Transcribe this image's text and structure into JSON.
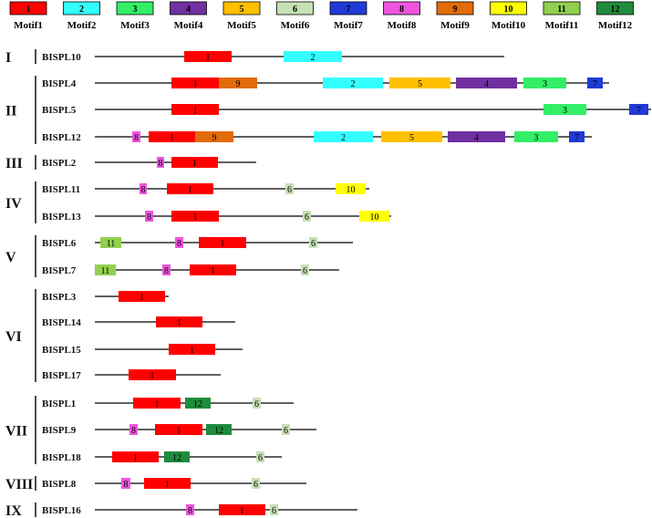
{
  "legend": [
    {
      "num": "1",
      "label": "Motif1",
      "color": "#ff0000"
    },
    {
      "num": "2",
      "label": "Motif2",
      "color": "#33ffff"
    },
    {
      "num": "3",
      "label": "Motif3",
      "color": "#33ee66"
    },
    {
      "num": "4",
      "label": "Motif4",
      "color": "#7030a0"
    },
    {
      "num": "5",
      "label": "Motif5",
      "color": "#ffc000"
    },
    {
      "num": "6",
      "label": "Motif6",
      "color": "#c6e0b4"
    },
    {
      "num": "7",
      "label": "Motif7",
      "color": "#1f3ad6"
    },
    {
      "num": "8",
      "label": "Motif8",
      "color": "#ee55dd"
    },
    {
      "num": "9",
      "label": "Motif9",
      "color": "#e26b0a"
    },
    {
      "num": "10",
      "label": "Motif10",
      "color": "#ffff00"
    },
    {
      "num": "11",
      "label": "Motif11",
      "color": "#92d050"
    },
    {
      "num": "12",
      "label": "Motif12",
      "color": "#1e8c3c"
    }
  ],
  "groups": [
    {
      "label": "I",
      "genes": [
        "BISPL10"
      ]
    },
    {
      "label": "II",
      "genes": [
        "BISPL4",
        "BISPL5",
        "BISPL12"
      ]
    },
    {
      "label": "III",
      "genes": [
        "BISPL2"
      ]
    },
    {
      "label": "IV",
      "genes": [
        "BISPL11",
        "BISPL13"
      ]
    },
    {
      "label": "V",
      "genes": [
        "BISPL6",
        "BISPL7"
      ]
    },
    {
      "label": "VI",
      "genes": [
        "BISPL3",
        "BISPL14",
        "BISPL15",
        "BISPL17"
      ]
    },
    {
      "label": "VII",
      "genes": [
        "BISPL1",
        "BISPL9",
        "BISPL18"
      ]
    },
    {
      "label": "VIII",
      "genes": [
        "BISPL8"
      ]
    },
    {
      "label": "IX",
      "genes": [
        "BISPL16"
      ]
    }
  ],
  "genes": {
    "BISPL10": {
      "length": 449,
      "motifs": [
        {
          "m": 1,
          "start": 98,
          "end": 150
        },
        {
          "m": 2,
          "start": 207,
          "end": 271
        }
      ]
    },
    "BISPL4": {
      "length": 564,
      "motifs": [
        {
          "m": 1,
          "start": 84,
          "end": 136
        },
        {
          "m": 9,
          "start": 136,
          "end": 178
        },
        {
          "m": 2,
          "start": 250,
          "end": 316
        },
        {
          "m": 5,
          "start": 323,
          "end": 390
        },
        {
          "m": 4,
          "start": 396,
          "end": 463
        },
        {
          "m": 3,
          "start": 470,
          "end": 517
        },
        {
          "m": 7,
          "start": 540,
          "end": 557
        }
      ]
    },
    "BISPL5": {
      "length": 610,
      "motifs": [
        {
          "m": 1,
          "start": 84,
          "end": 136
        },
        {
          "m": 3,
          "start": 492,
          "end": 539
        },
        {
          "m": 7,
          "start": 586,
          "end": 607
        }
      ]
    },
    "BISPL12": {
      "length": 545,
      "motifs": [
        {
          "m": 8,
          "start": 41,
          "end": 50
        },
        {
          "m": 1,
          "start": 59,
          "end": 110
        },
        {
          "m": 9,
          "start": 110,
          "end": 152
        },
        {
          "m": 2,
          "start": 240,
          "end": 305
        },
        {
          "m": 5,
          "start": 314,
          "end": 381
        },
        {
          "m": 4,
          "start": 387,
          "end": 450
        },
        {
          "m": 3,
          "start": 460,
          "end": 508
        },
        {
          "m": 7,
          "start": 520,
          "end": 537
        }
      ]
    },
    "BISPL2": {
      "length": 177,
      "motifs": [
        {
          "m": 8,
          "start": 68,
          "end": 76
        },
        {
          "m": 1,
          "start": 84,
          "end": 135
        }
      ]
    },
    "BISPL11": {
      "length": 301,
      "motifs": [
        {
          "m": 8,
          "start": 49,
          "end": 57
        },
        {
          "m": 1,
          "start": 79,
          "end": 130
        },
        {
          "m": 6,
          "start": 209,
          "end": 218
        },
        {
          "m": 10,
          "start": 264,
          "end": 297
        }
      ]
    },
    "BISPL13": {
      "length": 325,
      "motifs": [
        {
          "m": 8,
          "start": 55,
          "end": 64
        },
        {
          "m": 1,
          "start": 84,
          "end": 136
        },
        {
          "m": 6,
          "start": 228,
          "end": 237
        },
        {
          "m": 10,
          "start": 290,
          "end": 323
        }
      ]
    },
    "BISPL6": {
      "length": 283,
      "motifs": [
        {
          "m": 11,
          "start": 6,
          "end": 29
        },
        {
          "m": 8,
          "start": 88,
          "end": 97
        },
        {
          "m": 1,
          "start": 114,
          "end": 166
        },
        {
          "m": 6,
          "start": 235,
          "end": 244
        }
      ]
    },
    "BISPL7": {
      "length": 268,
      "motifs": [
        {
          "m": 11,
          "start": 0,
          "end": 23
        },
        {
          "m": 8,
          "start": 74,
          "end": 83
        },
        {
          "m": 1,
          "start": 104,
          "end": 155
        },
        {
          "m": 6,
          "start": 226,
          "end": 235
        }
      ]
    },
    "BISPL3": {
      "length": 81,
      "motifs": [
        {
          "m": 1,
          "start": 26,
          "end": 77
        }
      ]
    },
    "BISPL14": {
      "length": 154,
      "motifs": [
        {
          "m": 1,
          "start": 67,
          "end": 118
        }
      ]
    },
    "BISPL15": {
      "length": 162,
      "motifs": [
        {
          "m": 1,
          "start": 81,
          "end": 132
        }
      ]
    },
    "BISPL17": {
      "length": 138,
      "motifs": [
        {
          "m": 1,
          "start": 37,
          "end": 89
        }
      ]
    },
    "BISPL1": {
      "length": 218,
      "motifs": [
        {
          "m": 1,
          "start": 42,
          "end": 94
        },
        {
          "m": 12,
          "start": 99,
          "end": 127
        },
        {
          "m": 6,
          "start": 173,
          "end": 182
        }
      ]
    },
    "BISPL9": {
      "length": 243,
      "motifs": [
        {
          "m": 8,
          "start": 38,
          "end": 47
        },
        {
          "m": 1,
          "start": 66,
          "end": 118
        },
        {
          "m": 12,
          "start": 122,
          "end": 150
        },
        {
          "m": 6,
          "start": 205,
          "end": 214
        }
      ]
    },
    "BISPL18": {
      "length": 205,
      "motifs": [
        {
          "m": 1,
          "start": 19,
          "end": 70
        },
        {
          "m": 12,
          "start": 76,
          "end": 104
        },
        {
          "m": 6,
          "start": 177,
          "end": 186
        }
      ]
    },
    "BISPL8": {
      "length": 232,
      "motifs": [
        {
          "m": 8,
          "start": 29,
          "end": 39
        },
        {
          "m": 1,
          "start": 54,
          "end": 105
        },
        {
          "m": 6,
          "start": 172,
          "end": 181
        }
      ]
    },
    "BISPL16": {
      "length": 288,
      "motifs": [
        {
          "m": 8,
          "start": 100,
          "end": 109
        },
        {
          "m": 1,
          "start": 136,
          "end": 187
        },
        {
          "m": 6,
          "start": 192,
          "end": 201
        }
      ]
    }
  }
}
